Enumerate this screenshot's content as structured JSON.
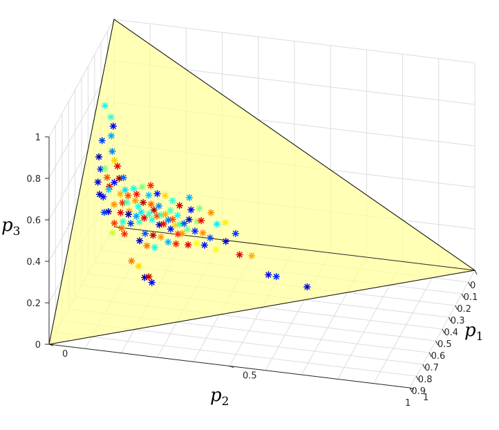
{
  "chart_data": {
    "type": "scatter",
    "projection": "3d",
    "title": "",
    "axes": {
      "p1": {
        "label": "p",
        "sub": "1",
        "range": [
          0,
          1
        ],
        "ticks": [
          {
            "v": 0,
            "label": "0"
          },
          {
            "v": 0.5,
            "label": "0.5"
          },
          {
            "v": 1,
            "label": "1"
          }
        ]
      },
      "p2": {
        "label": "p",
        "sub": "2",
        "range": [
          0,
          1
        ],
        "ticks": [
          {
            "v": 0,
            "label": "0"
          },
          {
            "v": 0.1,
            "label": "0.1"
          },
          {
            "v": 0.2,
            "label": "0.2"
          },
          {
            "v": 0.3,
            "label": "0.3"
          },
          {
            "v": 0.4,
            "label": "0.4"
          },
          {
            "v": 0.5,
            "label": "0.5"
          },
          {
            "v": 0.6,
            "label": "0.6"
          },
          {
            "v": 0.7,
            "label": "0.7"
          },
          {
            "v": 0.8,
            "label": "0.8"
          },
          {
            "v": 0.9,
            "label": "0.9"
          },
          {
            "v": 1,
            "label": "1"
          }
        ]
      },
      "p3": {
        "label": "p",
        "sub": "3",
        "range": [
          0,
          1
        ],
        "ticks": [
          {
            "v": 0,
            "label": "0"
          },
          {
            "v": 0.2,
            "label": "0.2"
          },
          {
            "v": 0.4,
            "label": "0.4"
          },
          {
            "v": 0.6,
            "label": "0.6"
          },
          {
            "v": 0.8,
            "label": "0.8"
          },
          {
            "v": 1,
            "label": "1"
          }
        ]
      }
    },
    "grid": true,
    "simplex_fill": "#ffff99",
    "marker": "asterisk",
    "colormap": "jet",
    "points": [
      [
        0.02,
        0.25,
        0.73,
        0.38
      ],
      [
        0.04,
        0.27,
        0.69,
        0.42
      ],
      [
        0.05,
        0.32,
        0.63,
        0.29
      ],
      [
        0.03,
        0.35,
        0.62,
        0.18
      ],
      [
        0.05,
        0.29,
        0.66,
        0.12
      ],
      [
        0.03,
        0.4,
        0.57,
        0.04
      ],
      [
        0.04,
        0.43,
        0.53,
        0.16
      ],
      [
        0.06,
        0.36,
        0.58,
        0.25
      ],
      [
        0.05,
        0.42,
        0.53,
        0.5
      ],
      [
        0.07,
        0.38,
        0.55,
        0.67
      ],
      [
        0.06,
        0.44,
        0.5,
        0.8
      ],
      [
        0.07,
        0.46,
        0.47,
        0.88
      ],
      [
        0.08,
        0.39,
        0.53,
        0.9
      ],
      [
        0.09,
        0.42,
        0.49,
        0.97
      ],
      [
        0.08,
        0.44,
        0.48,
        0.12
      ],
      [
        0.07,
        0.47,
        0.46,
        0.33
      ],
      [
        0.09,
        0.5,
        0.41,
        0.73
      ],
      [
        0.1,
        0.46,
        0.44,
        0.7
      ],
      [
        0.06,
        0.5,
        0.44,
        0.14
      ],
      [
        0.08,
        0.53,
        0.39,
        0.06
      ],
      [
        0.1,
        0.55,
        0.35,
        0.82
      ],
      [
        0.04,
        0.47,
        0.49,
        0.08
      ],
      [
        0.05,
        0.5,
        0.45,
        0.1
      ],
      [
        0.07,
        0.54,
        0.39,
        0.18
      ],
      [
        0.1,
        0.58,
        0.32,
        0.57
      ],
      [
        0.12,
        0.55,
        0.33,
        0.76
      ],
      [
        0.13,
        0.56,
        0.31,
        0.84
      ],
      [
        0.16,
        0.62,
        0.22,
        0.76
      ],
      [
        0.18,
        0.62,
        0.2,
        0.66
      ],
      [
        0.2,
        0.64,
        0.16,
        0.08
      ],
      [
        0.22,
        0.64,
        0.14,
        0.12
      ],
      [
        0.21,
        0.63,
        0.16,
        0.93
      ],
      [
        0.11,
        0.48,
        0.41,
        0.84
      ],
      [
        0.13,
        0.49,
        0.38,
        0.72
      ],
      [
        0.11,
        0.51,
        0.38,
        0.9
      ],
      [
        0.12,
        0.45,
        0.43,
        0.8
      ],
      [
        0.13,
        0.42,
        0.45,
        0.38
      ],
      [
        0.14,
        0.45,
        0.41,
        0.72
      ],
      [
        0.1,
        0.41,
        0.49,
        0.22
      ],
      [
        0.11,
        0.44,
        0.45,
        0.34
      ],
      [
        0.12,
        0.47,
        0.41,
        0.45
      ],
      [
        0.13,
        0.5,
        0.37,
        0.06
      ],
      [
        0.12,
        0.53,
        0.35,
        0.4
      ],
      [
        0.14,
        0.52,
        0.34,
        0.18
      ],
      [
        0.15,
        0.49,
        0.36,
        0.28
      ],
      [
        0.15,
        0.46,
        0.39,
        0.4
      ],
      [
        0.14,
        0.43,
        0.43,
        0.86
      ],
      [
        0.16,
        0.44,
        0.4,
        0.93
      ],
      [
        0.16,
        0.47,
        0.37,
        0.35
      ],
      [
        0.16,
        0.5,
        0.34,
        0.44
      ],
      [
        0.17,
        0.48,
        0.35,
        0.9
      ],
      [
        0.18,
        0.46,
        0.36,
        0.42
      ],
      [
        0.18,
        0.43,
        0.39,
        0.78
      ],
      [
        0.17,
        0.41,
        0.42,
        0.32
      ],
      [
        0.19,
        0.44,
        0.37,
        0.96
      ],
      [
        0.19,
        0.47,
        0.34,
        0.4
      ],
      [
        0.2,
        0.45,
        0.35,
        0.8
      ],
      [
        0.2,
        0.42,
        0.38,
        0.26
      ],
      [
        0.21,
        0.44,
        0.35,
        0.42
      ],
      [
        0.21,
        0.47,
        0.32,
        0.08
      ],
      [
        0.22,
        0.43,
        0.35,
        0.7
      ],
      [
        0.22,
        0.46,
        0.32,
        0.88
      ],
      [
        0.23,
        0.44,
        0.33,
        0.24
      ],
      [
        0.23,
        0.41,
        0.36,
        0.46
      ],
      [
        0.24,
        0.43,
        0.33,
        0.8
      ],
      [
        0.24,
        0.46,
        0.3,
        0.14
      ],
      [
        0.25,
        0.44,
        0.31,
        0.66
      ],
      [
        0.25,
        0.41,
        0.34,
        0.38
      ],
      [
        0.26,
        0.43,
        0.31,
        0.44
      ],
      [
        0.26,
        0.46,
        0.28,
        0.84
      ],
      [
        0.27,
        0.42,
        0.31,
        0.2
      ],
      [
        0.27,
        0.45,
        0.28,
        0.72
      ],
      [
        0.28,
        0.43,
        0.29,
        0.48
      ],
      [
        0.28,
        0.4,
        0.32,
        0.06
      ],
      [
        0.15,
        0.4,
        0.45,
        0.5
      ],
      [
        0.17,
        0.38,
        0.45,
        0.84
      ],
      [
        0.19,
        0.39,
        0.42,
        0.14
      ],
      [
        0.21,
        0.38,
        0.41,
        0.66
      ],
      [
        0.23,
        0.38,
        0.39,
        0.43
      ],
      [
        0.25,
        0.38,
        0.37,
        0.92
      ],
      [
        0.18,
        0.52,
        0.3,
        0.2
      ],
      [
        0.2,
        0.51,
        0.29,
        0.94
      ],
      [
        0.22,
        0.5,
        0.28,
        0.72
      ],
      [
        0.24,
        0.5,
        0.26,
        0.3
      ],
      [
        0.26,
        0.49,
        0.25,
        0.85
      ],
      [
        0.17,
        0.55,
        0.28,
        0.06
      ],
      [
        0.19,
        0.55,
        0.26,
        0.76
      ],
      [
        0.21,
        0.54,
        0.25,
        0.38
      ],
      [
        0.3,
        0.42,
        0.28,
        0.16
      ],
      [
        0.31,
        0.45,
        0.24,
        0.62
      ],
      [
        0.32,
        0.41,
        0.27,
        0.74
      ],
      [
        0.3,
        0.39,
        0.31,
        0.52
      ],
      [
        0.33,
        0.44,
        0.23,
        0.14
      ],
      [
        0.29,
        0.47,
        0.24,
        0.9
      ],
      [
        0.34,
        0.41,
        0.25,
        0.2
      ],
      [
        0.31,
        0.38,
        0.31,
        0.88
      ],
      [
        0.36,
        0.43,
        0.21,
        0.62
      ],
      [
        0.28,
        0.37,
        0.35,
        0.12
      ],
      [
        0.38,
        0.39,
        0.23,
        0.08
      ],
      [
        0.42,
        0.4,
        0.18,
        0.9
      ],
      [
        0.45,
        0.38,
        0.17,
        0.7
      ],
      [
        0.5,
        0.4,
        0.1,
        0.1
      ],
      [
        0.52,
        0.39,
        0.09,
        0.16
      ],
      [
        0.6,
        0.36,
        0.04,
        0.08
      ],
      [
        0.35,
        0.36,
        0.29,
        0.36
      ],
      [
        0.33,
        0.34,
        0.33,
        0.74
      ],
      [
        0.3,
        0.35,
        0.35,
        0.5
      ],
      [
        0.37,
        0.34,
        0.29,
        0.64
      ],
      [
        0.27,
        0.34,
        0.39,
        0.3
      ],
      [
        0.4,
        0.35,
        0.25,
        0.18
      ]
    ]
  }
}
